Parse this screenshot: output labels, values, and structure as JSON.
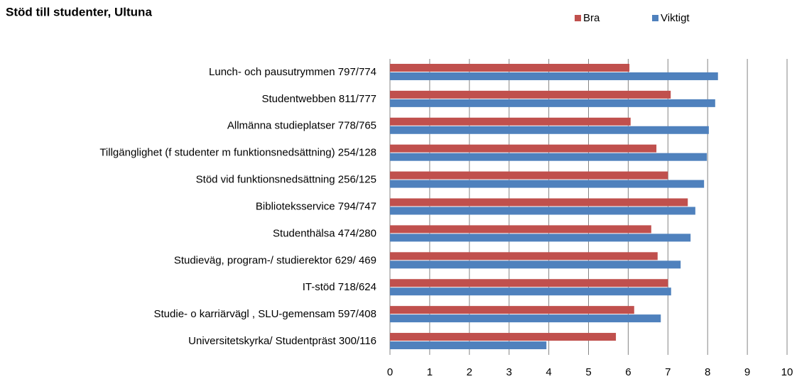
{
  "chart_data": {
    "type": "hbar",
    "title": "Stöd till studenter, Ultuna",
    "categories": [
      "Lunch- och pausutrymmen 797/774",
      "Studentwebben 811/777",
      "Allmänna studieplatser 778/765",
      "Tillgänglighet (f studenter m funktionsnedsättning) 254/128",
      "Stöd vid funktionsnedsättning 256/125",
      "Biblioteksservice 794/747",
      "Studenthälsa 474/280",
      "Studieväg,   program-/ studierektor 629/ 469",
      "IT-stöd 718/624",
      "Studie- o karriärvägl , SLU-gemensam 597/408",
      "Universitetskyrka/ Studentpräst 300/116"
    ],
    "series": [
      {
        "name": "Bra",
        "color": "#c0504d",
        "values": [
          6.03,
          7.07,
          6.06,
          6.71,
          7.0,
          7.5,
          6.58,
          6.74,
          7.0,
          6.15,
          5.69
        ]
      },
      {
        "name": "Viktigt",
        "color": "#4f81bd",
        "values": [
          8.26,
          8.19,
          8.03,
          7.98,
          7.91,
          7.69,
          7.57,
          7.32,
          7.08,
          6.82,
          3.94
        ]
      }
    ],
    "xlim": [
      0,
      10
    ],
    "xticks": [
      0,
      1,
      2,
      3,
      4,
      5,
      6,
      7,
      8,
      9,
      10
    ],
    "grid": true,
    "legend": "top"
  }
}
